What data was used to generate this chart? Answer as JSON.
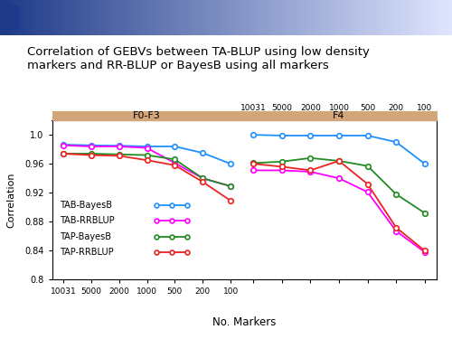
{
  "title_line1": "Correlation of GEBVs between TA-BLUP using low density",
  "title_line2": "markers and RR-BLUP or BayesB using all markers",
  "xlabel": "No. Markers",
  "ylabel": "Correlation",
  "ylim": [
    0.8,
    1.02
  ],
  "yticks": [
    0.8,
    0.84,
    0.88,
    0.92,
    0.96,
    1.0
  ],
  "markers_x": [
    10031,
    5000,
    2000,
    1000,
    500,
    200,
    100
  ],
  "panel_labels": [
    "F0-F3",
    "F4"
  ],
  "panel_header_color": "#D2A679",
  "background_color": "#ffffff",
  "banner_left_color": "#1E3A8A",
  "banner_right_color": "#E0E8F8",
  "series_keys": [
    "TAB_BayesB",
    "TAB_RRBLUP",
    "TAP_BayesB",
    "TAP_RRBLUP"
  ],
  "series": {
    "TAB_BayesB": {
      "color": "#1E90FF",
      "label": "TAB-BayesB",
      "F0F3": [
        0.9865,
        0.9855,
        0.985,
        0.984,
        0.984,
        0.975,
        0.96
      ],
      "F4": [
        1.0,
        0.999,
        0.999,
        0.999,
        0.999,
        0.99,
        0.96
      ]
    },
    "TAB_RRBLUP": {
      "color": "#FF00FF",
      "label": "TAB-RRBLUP",
      "F0F3": [
        0.9855,
        0.984,
        0.984,
        0.982,
        0.961,
        0.94,
        0.929
      ],
      "F4": [
        0.951,
        0.951,
        0.949,
        0.94,
        0.921,
        0.867,
        0.838
      ]
    },
    "TAP_BayesB": {
      "color": "#228B22",
      "label": "TAP-BayesB",
      "F0F3": [
        0.974,
        0.974,
        0.973,
        0.972,
        0.966,
        0.94,
        0.929
      ],
      "F4": [
        0.961,
        0.963,
        0.968,
        0.964,
        0.957,
        0.918,
        0.892
      ]
    },
    "TAP_RRBLUP": {
      "color": "#EE2222",
      "label": "TAP-RRBLUP",
      "F0F3": [
        0.974,
        0.972,
        0.971,
        0.965,
        0.958,
        0.935,
        0.909
      ],
      "F4": [
        0.96,
        0.956,
        0.951,
        0.964,
        0.932,
        0.872,
        0.84
      ]
    }
  }
}
